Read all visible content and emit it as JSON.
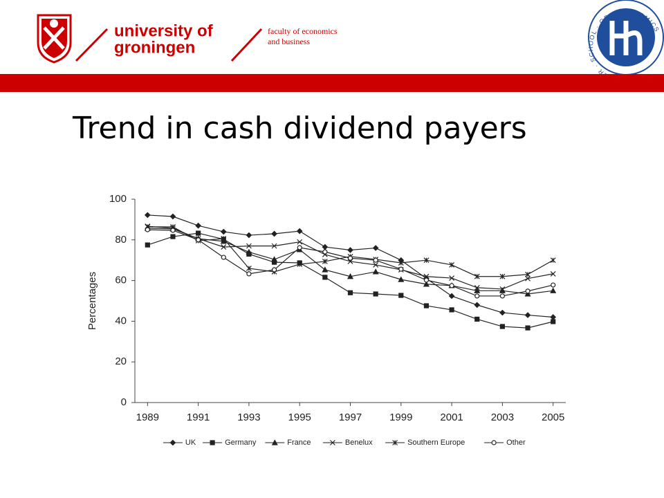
{
  "header": {
    "university": [
      "university of",
      "groningen"
    ],
    "faculty": [
      "faculty of economics",
      "and business"
    ],
    "hse_logo": "HIGHER · SCHOOL · OF · ECONOMICS"
  },
  "chart_data": {
    "type": "line",
    "title": "Trend in cash dividend payers",
    "y_label": "Percentages",
    "x": [
      1989,
      1990,
      1991,
      1992,
      1993,
      1994,
      1995,
      1996,
      1997,
      1998,
      1999,
      2000,
      2001,
      2002,
      2003,
      2004,
      2005
    ],
    "xlim": [
      1988.5,
      2005.5
    ],
    "xticks": [
      1989,
      1991,
      1993,
      1995,
      1997,
      1999,
      2001,
      2003,
      2005
    ],
    "ylim": [
      0,
      100
    ],
    "yticks": [
      0,
      20,
      40,
      60,
      80,
      100
    ],
    "legend": "bottom",
    "series": [
      {
        "name": "UK",
        "color": "#222222",
        "marker": "diamond",
        "values": [
          92.2,
          91.5,
          87,
          84,
          82.3,
          83,
          84.3,
          76.5,
          75,
          76,
          70,
          61,
          52.4,
          48,
          44.2,
          43,
          42
        ]
      },
      {
        "name": "Germany",
        "color": "#222222",
        "marker": "square",
        "values": [
          77.5,
          81.6,
          83.3,
          80.3,
          73,
          69,
          68.7,
          61.6,
          54,
          53.4,
          52.7,
          47.6,
          45.6,
          41,
          37.4,
          36.7,
          39.8
        ]
      },
      {
        "name": "France",
        "color": "#222222",
        "marker": "triangle",
        "values": [
          85.7,
          85.4,
          80.6,
          79.3,
          74,
          70.4,
          75.2,
          65.3,
          62,
          64.3,
          60.5,
          58.2,
          57.5,
          55,
          55,
          53.4,
          55
        ]
      },
      {
        "name": "Benelux",
        "color": "#222222",
        "marker": "x",
        "values": [
          86.7,
          85.7,
          80.6,
          76.5,
          77,
          77,
          79,
          72.8,
          69.4,
          67.7,
          65.3,
          62,
          61.2,
          56.5,
          55.8,
          61,
          63.3
        ]
      },
      {
        "name": "Southern Europe",
        "color": "#222222",
        "marker": "star",
        "values": [
          86.4,
          86.4,
          79.6,
          80.6,
          66,
          64.3,
          68,
          69.4,
          71.8,
          70.4,
          68.7,
          70,
          67.7,
          62,
          62,
          63,
          70
        ]
      },
      {
        "name": "Other",
        "color": "#222222",
        "marker": "circle",
        "values": [
          85,
          84.7,
          80,
          71.4,
          63.3,
          65.3,
          76.2,
          74.1,
          71,
          70,
          65.6,
          60.2,
          57.5,
          52.4,
          52.4,
          54.8,
          57.8
        ]
      }
    ]
  }
}
